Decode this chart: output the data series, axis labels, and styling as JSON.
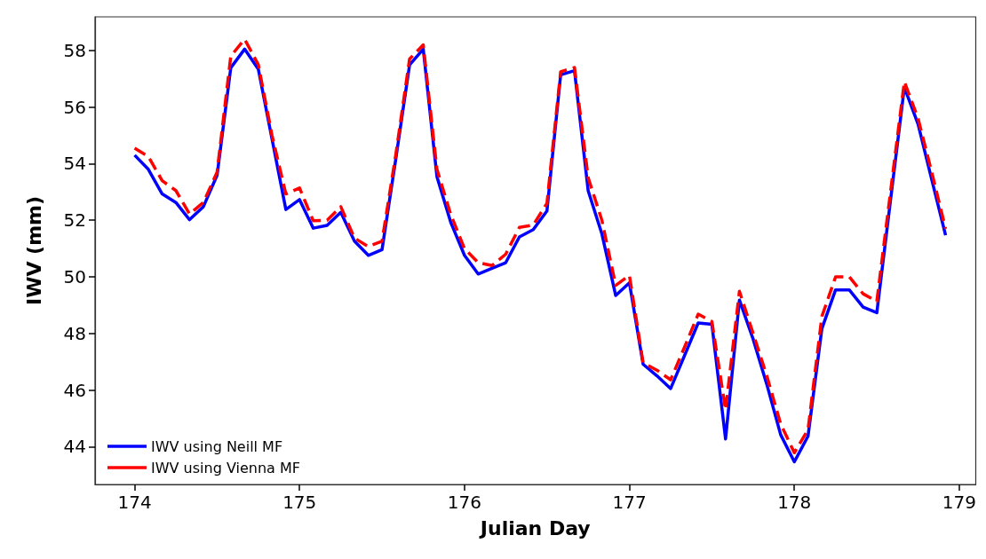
{
  "chart_data": {
    "type": "line",
    "xlabel": "Julian Day",
    "ylabel": "IWV (mm)",
    "x": [
      174,
      174.083,
      174.167,
      174.25,
      174.333,
      174.417,
      174.5,
      174.583,
      174.667,
      174.75,
      174.833,
      174.917,
      175,
      175.083,
      175.167,
      175.25,
      175.333,
      175.417,
      175.5,
      175.583,
      175.667,
      175.75,
      175.833,
      175.917,
      176,
      176.083,
      176.167,
      176.25,
      176.333,
      176.417,
      176.5,
      176.583,
      176.667,
      176.75,
      176.833,
      176.917,
      177,
      177.083,
      177.167,
      177.25,
      177.333,
      177.417,
      177.5,
      177.583,
      177.667,
      177.75,
      177.833,
      177.917,
      178,
      178.083,
      178.167,
      178.25,
      178.333,
      178.417,
      178.5,
      178.583,
      178.667,
      178.75,
      178.833,
      178.917
    ],
    "series": [
      {
        "name": "IWV using Neill MF",
        "color": "#0000ff",
        "line_style": "solid",
        "values": [
          54.3,
          53.8,
          52.93,
          52.63,
          52.02,
          52.48,
          53.59,
          57.39,
          58.05,
          57.34,
          54.87,
          52.38,
          52.73,
          51.72,
          51.82,
          52.28,
          51.26,
          50.76,
          50.96,
          54.15,
          57.49,
          58.05,
          53.54,
          51.92,
          50.76,
          50.1,
          50.3,
          50.5,
          51.41,
          51.67,
          52.33,
          57.14,
          57.29,
          53.04,
          51.52,
          49.34,
          49.79,
          46.91,
          46.5,
          46.05,
          47.2,
          48.37,
          48.32,
          44.27,
          49.18,
          47.8,
          46.2,
          44.42,
          43.46,
          44.37,
          48.17,
          49.54,
          49.54,
          48.93,
          48.73,
          52.7,
          56.7,
          55.4,
          53.44,
          51.47
        ]
      },
      {
        "name": "IWV using Vienna MF",
        "color": "#ff0000",
        "line_style": "dashed",
        "values": [
          54.55,
          54.25,
          53.4,
          53.05,
          52.22,
          52.63,
          53.7,
          57.8,
          58.4,
          57.5,
          55,
          52.93,
          53.14,
          51.98,
          52,
          52.48,
          51.37,
          51.07,
          51.26,
          54.3,
          57.7,
          58.2,
          53.8,
          52.2,
          51,
          50.5,
          50.4,
          50.8,
          51.75,
          51.83,
          52.6,
          57.25,
          57.4,
          53.5,
          52,
          49.7,
          50.05,
          46.96,
          46.7,
          46.36,
          47.5,
          48.68,
          48.42,
          45.3,
          49.49,
          48,
          46.5,
          44.8,
          43.78,
          44.6,
          48.6,
          50,
          50,
          49.4,
          49.13,
          53,
          56.9,
          55.6,
          53.7,
          51.7
        ]
      }
    ],
    "xlim": [
      173.76,
      179.1
    ],
    "xticks": [
      174,
      175,
      176,
      177,
      178,
      179
    ],
    "ylim": [
      42.66,
      59.19
    ],
    "yticks": [
      44,
      46,
      48,
      50,
      52,
      54,
      56,
      58
    ],
    "grid": false,
    "legend": "bottom left",
    "marker": "none"
  }
}
